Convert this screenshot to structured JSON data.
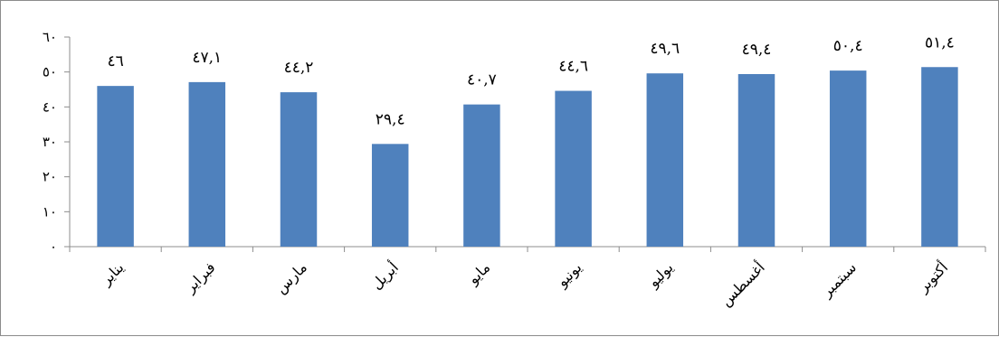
{
  "chart_data": {
    "type": "bar",
    "categories": [
      "يناير",
      "فبراير",
      "مارس",
      "أبريل",
      "مايو",
      "يونيو",
      "يوليو",
      "أغسطس",
      "سبتمبر",
      "أكتوبر"
    ],
    "values": [
      46,
      47.1,
      44.2,
      29.4,
      40.7,
      44.6,
      49.6,
      49.4,
      50.4,
      51.4
    ],
    "value_labels": [
      "٤٦",
      "٤٧,١",
      "٤٤,٢",
      "٢٩,٤",
      "٤٠,٧",
      "٤٤,٦",
      "٤٩,٦",
      "٤٩,٤",
      "٥٠,٤",
      "٥١,٤"
    ],
    "y_ticks": [
      0,
      10,
      20,
      30,
      40,
      50,
      60
    ],
    "y_tick_labels": [
      "٠",
      "١٠",
      "٢٠",
      "٣٠",
      "٤٠",
      "٥٠",
      "٦٠"
    ],
    "ylim": [
      0,
      60
    ],
    "title": "",
    "xlabel": "",
    "ylabel": "",
    "grid": false,
    "legend": "none",
    "bar_color": "#4f81bd"
  }
}
